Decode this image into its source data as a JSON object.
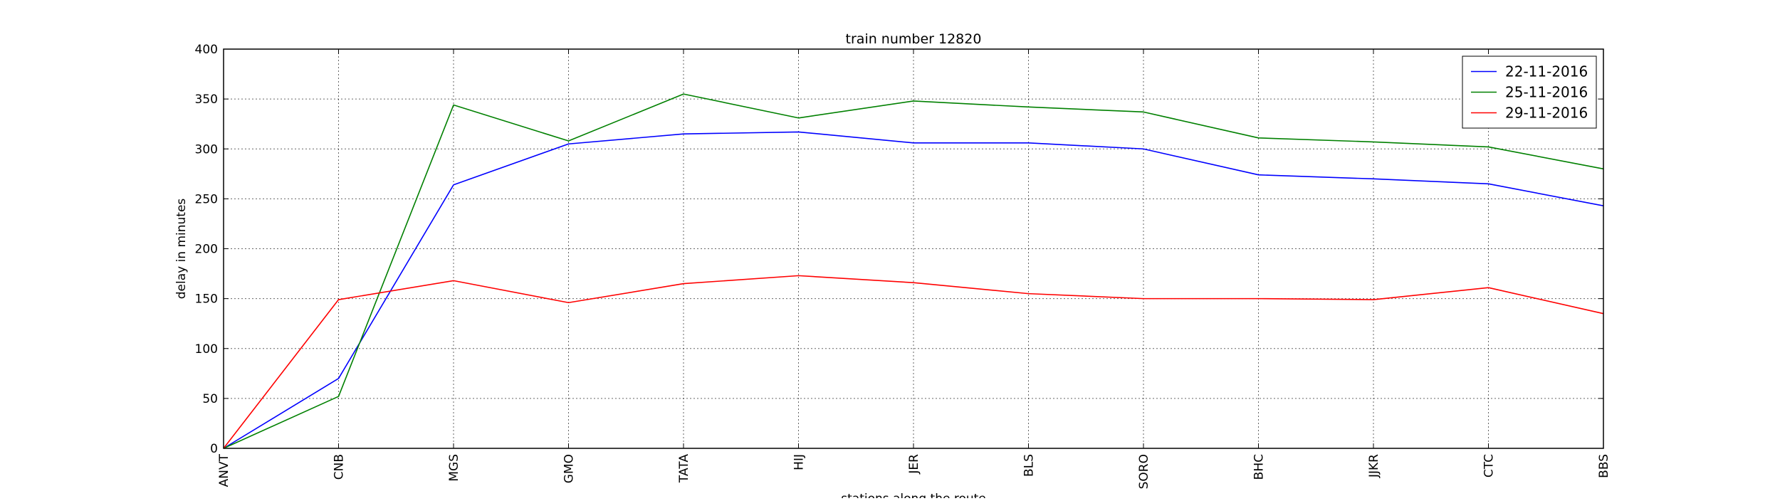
{
  "chart_data": {
    "type": "line",
    "title": "train number 12820",
    "xlabel": "stations along the route",
    "ylabel": "delay in minutes",
    "categories": [
      "ANVT",
      "CNB",
      "MGS",
      "GMO",
      "TATA",
      "HIJ",
      "JER",
      "BLS",
      "SORO",
      "BHC",
      "JJKR",
      "CTC",
      "BBS"
    ],
    "ylim": [
      0,
      400
    ],
    "yticks": [
      0,
      50,
      100,
      150,
      200,
      250,
      300,
      350,
      400
    ],
    "grid": true,
    "legend_position": "top-right",
    "series": [
      {
        "name": "22-11-2016",
        "color": "#0000ff",
        "values": [
          0,
          70,
          264,
          305,
          315,
          317,
          306,
          306,
          300,
          274,
          270,
          265,
          243
        ]
      },
      {
        "name": "25-11-2016",
        "color": "#008000",
        "values": [
          0,
          52,
          344,
          308,
          355,
          331,
          348,
          342,
          337,
          311,
          307,
          302,
          280
        ]
      },
      {
        "name": "29-11-2016",
        "color": "#ff0000",
        "values": [
          0,
          149,
          168,
          146,
          165,
          173,
          166,
          155,
          150,
          150,
          149,
          161,
          135
        ]
      }
    ]
  }
}
